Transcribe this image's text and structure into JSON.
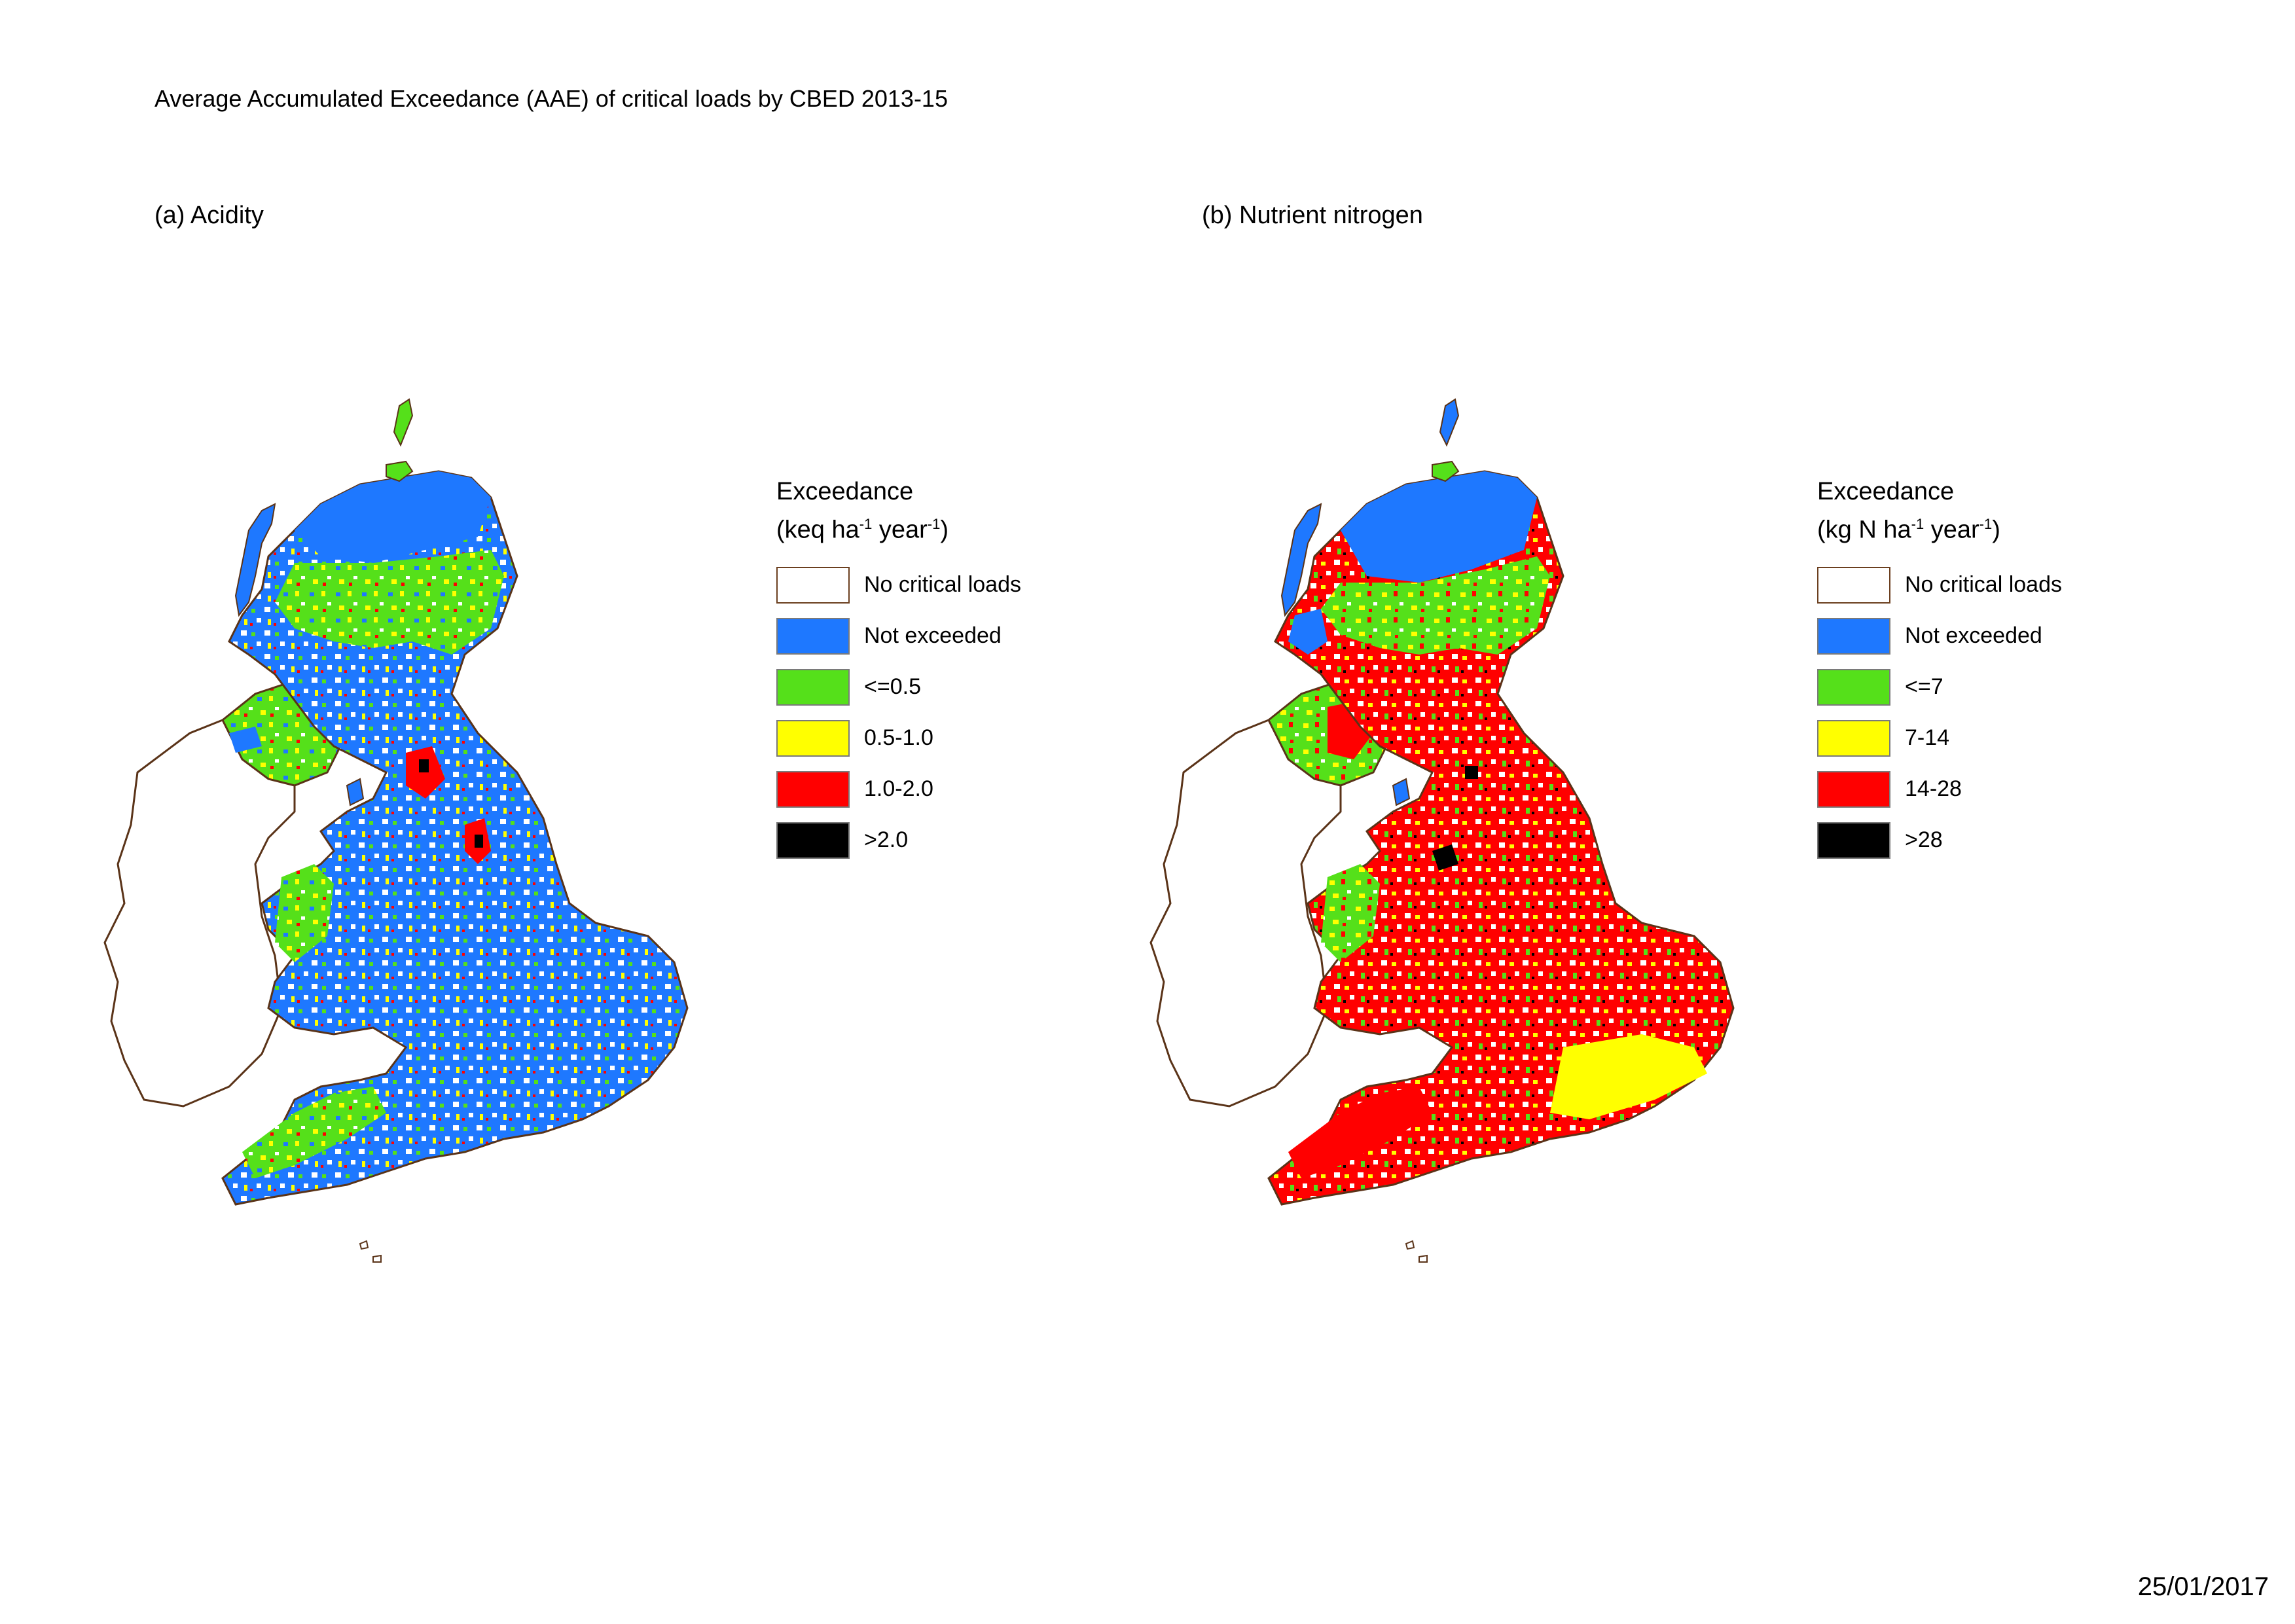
{
  "title": "Average Accumulated Exceedance (AAE) of critical loads by CBED 2013-15",
  "date": "25/01/2017",
  "colors": {
    "outline": "#5a3318",
    "no_critical_loads": "#ffffff",
    "not_exceeded": "#1e78ff",
    "level1": "#55e01a",
    "level2": "#ffff00",
    "level3": "#ff0000",
    "level4": "#000000"
  },
  "panels": [
    {
      "id": "a",
      "title": "(a) Acidity",
      "legend": {
        "heading_line1": "Exceedance",
        "heading_prefix": "(keq ha",
        "heading_sup1": "-1",
        "heading_mid": " year",
        "heading_sup2": "-1",
        "heading_suffix": ")",
        "items": [
          {
            "label": "No critical loads",
            "color": "#ffffff"
          },
          {
            "label": "Not exceeded",
            "color": "#1e78ff"
          },
          {
            "label": "<=0.5",
            "color": "#55e01a"
          },
          {
            "label": "0.5-1.0",
            "color": "#ffff00"
          },
          {
            "label": "1.0-2.0",
            "color": "#ff0000"
          },
          {
            "label": ">2.0",
            "color": "#000000"
          }
        ]
      }
    },
    {
      "id": "b",
      "title": "(b) Nutrient nitrogen",
      "legend": {
        "heading_line1": "Exceedance",
        "heading_prefix": "(kg N ha",
        "heading_sup1": "-1",
        "heading_mid": " year",
        "heading_sup2": "-1",
        "heading_suffix": ")",
        "items": [
          {
            "label": "No critical loads",
            "color": "#ffffff"
          },
          {
            "label": "Not exceeded",
            "color": "#1e78ff"
          },
          {
            "label": "<=7",
            "color": "#55e01a"
          },
          {
            "label": "7-14",
            "color": "#ffff00"
          },
          {
            "label": "14-28",
            "color": "#ff0000"
          },
          {
            "label": ">28",
            "color": "#000000"
          }
        ]
      }
    }
  ]
}
